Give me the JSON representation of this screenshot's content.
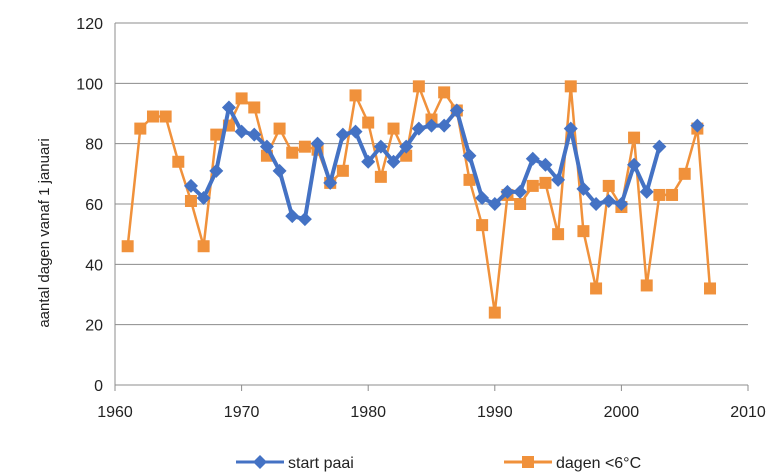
{
  "chart_data": {
    "type": "line",
    "title": "",
    "xlabel": "",
    "ylabel": "aantal dagen vanaf 1 januari",
    "xlim": [
      1960,
      2010
    ],
    "ylim": [
      0,
      120
    ],
    "x_ticks": [
      1960,
      1970,
      1980,
      1990,
      2000,
      2010
    ],
    "y_ticks": [
      0,
      20,
      40,
      60,
      80,
      100,
      120
    ],
    "grid": "horizontal",
    "legend_position": "bottom",
    "series": [
      {
        "name": "start paai",
        "color": "#4472C4",
        "marker": "diamond",
        "points": [
          [
            1966,
            66
          ],
          [
            1967,
            62
          ],
          [
            1968,
            71
          ],
          [
            1969,
            92
          ],
          [
            1970,
            84
          ],
          [
            1971,
            83
          ],
          [
            1972,
            79
          ],
          [
            1973,
            71
          ],
          [
            1974,
            56
          ],
          [
            1975,
            55
          ],
          [
            1976,
            80
          ],
          [
            1977,
            67
          ],
          [
            1978,
            83
          ],
          [
            1979,
            84
          ],
          [
            1980,
            74
          ],
          [
            1981,
            79
          ],
          [
            1982,
            74
          ],
          [
            1983,
            79
          ],
          [
            1984,
            85
          ],
          [
            1985,
            86
          ],
          [
            1986,
            86
          ],
          [
            1987,
            91
          ],
          [
            1988,
            76
          ],
          [
            1989,
            62
          ],
          [
            1990,
            60
          ],
          [
            1991,
            64
          ],
          [
            1992,
            64
          ],
          [
            1993,
            75
          ],
          [
            1994,
            73
          ],
          [
            1995,
            68
          ],
          [
            1996,
            85
          ],
          [
            1997,
            65
          ],
          [
            1998,
            60
          ],
          [
            1999,
            61
          ],
          [
            2000,
            60
          ],
          [
            2001,
            73
          ],
          [
            2002,
            64
          ],
          [
            2003,
            79
          ]
        ],
        "isolated_points": [
          [
            2006,
            86
          ]
        ]
      },
      {
        "name": "dagen <6°C",
        "color": "#F0913B",
        "marker": "square",
        "points": [
          [
            1961,
            46
          ],
          [
            1962,
            85
          ],
          [
            1963,
            89
          ],
          [
            1964,
            89
          ],
          [
            1965,
            74
          ],
          [
            1966,
            61
          ],
          [
            1967,
            46
          ],
          [
            1968,
            83
          ],
          [
            1969,
            86
          ],
          [
            1970,
            95
          ],
          [
            1971,
            92
          ],
          [
            1972,
            76
          ],
          [
            1973,
            85
          ],
          [
            1974,
            77
          ],
          [
            1975,
            79
          ],
          [
            1976,
            78
          ],
          [
            1977,
            67
          ],
          [
            1978,
            71
          ],
          [
            1979,
            96
          ],
          [
            1980,
            87
          ],
          [
            1981,
            69
          ],
          [
            1982,
            85
          ],
          [
            1983,
            76
          ],
          [
            1984,
            99
          ],
          [
            1985,
            88
          ],
          [
            1986,
            97
          ],
          [
            1987,
            91
          ],
          [
            1988,
            68
          ],
          [
            1989,
            53
          ],
          [
            1990,
            24
          ],
          [
            1991,
            63
          ],
          [
            1992,
            60
          ],
          [
            1993,
            66
          ],
          [
            1994,
            67
          ],
          [
            1995,
            50
          ],
          [
            1996,
            99
          ],
          [
            1997,
            51
          ],
          [
            1998,
            32
          ],
          [
            1999,
            66
          ],
          [
            2000,
            59
          ],
          [
            2001,
            82
          ],
          [
            2002,
            33
          ],
          [
            2003,
            63
          ],
          [
            2004,
            63
          ],
          [
            2005,
            70
          ],
          [
            2006,
            85
          ],
          [
            2007,
            32
          ]
        ]
      }
    ]
  }
}
